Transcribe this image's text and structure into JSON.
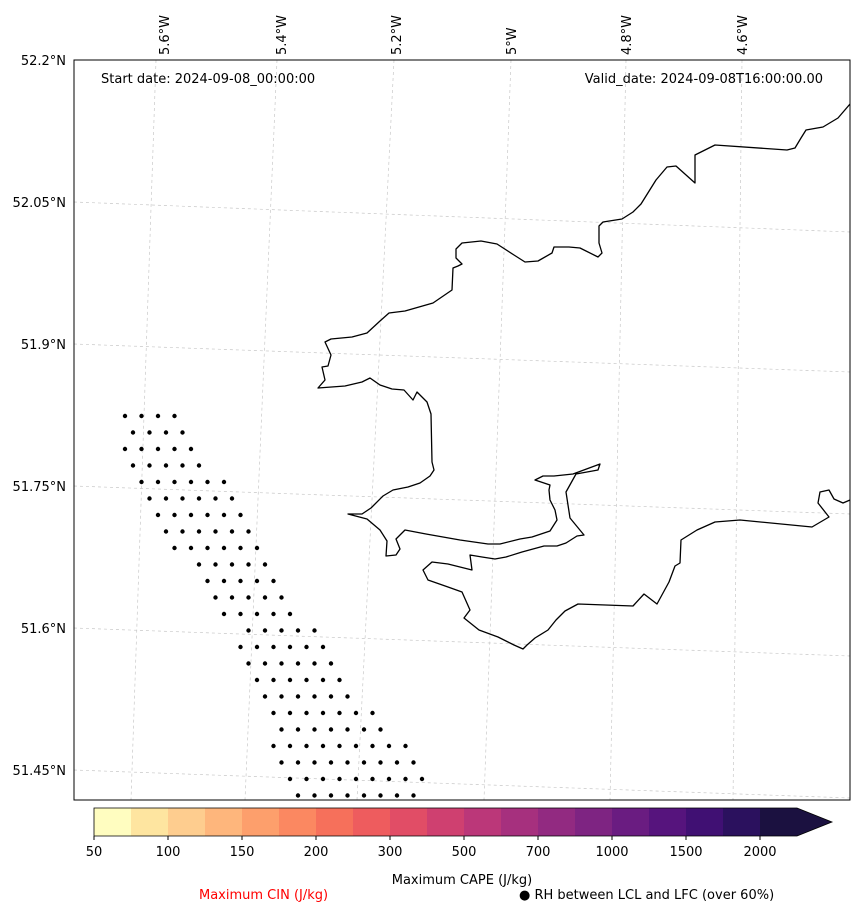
{
  "map": {
    "start_date_text": "Start date: 2024-09-08_00:00:00",
    "valid_date_text": "Valid_date: 2024-09-08T16:00:00.00",
    "lon_labels": [
      "5.6°W",
      "5.4°W",
      "5.2°W",
      "5°W",
      "4.8°W",
      "4.6°W"
    ],
    "lat_labels": [
      "52.2°N",
      "52.05°N",
      "51.9°N",
      "51.75°N",
      "51.6°N",
      "51.45°N"
    ],
    "coastline_color": "#000000",
    "gridline_color": "#c8c8c8"
  },
  "colorbar": {
    "label": "Maximum CAPE (J/kg)",
    "tick_labels": [
      "50",
      "100",
      "150",
      "200",
      "300",
      "500",
      "700",
      "1000",
      "1500",
      "2000"
    ],
    "colors": [
      "#fffdc0",
      "#fee5a0",
      "#fecd8f",
      "#feb67c",
      "#fd9f6c",
      "#fb8861",
      "#f6705b",
      "#ee5c5e",
      "#e14d66",
      "#cf4070",
      "#bb3779",
      "#a6307e",
      "#922a81",
      "#7e2482",
      "#6a1c81",
      "#56147d",
      "#401073",
      "#2b115e",
      "#1b1140"
    ]
  },
  "legend": {
    "cin_label": "Maximum CIN (J/kg)",
    "cin_color": "#ff0000",
    "rh_marker": "●",
    "rh_label": "RH between LCL and LFC (over 60%)"
  }
}
